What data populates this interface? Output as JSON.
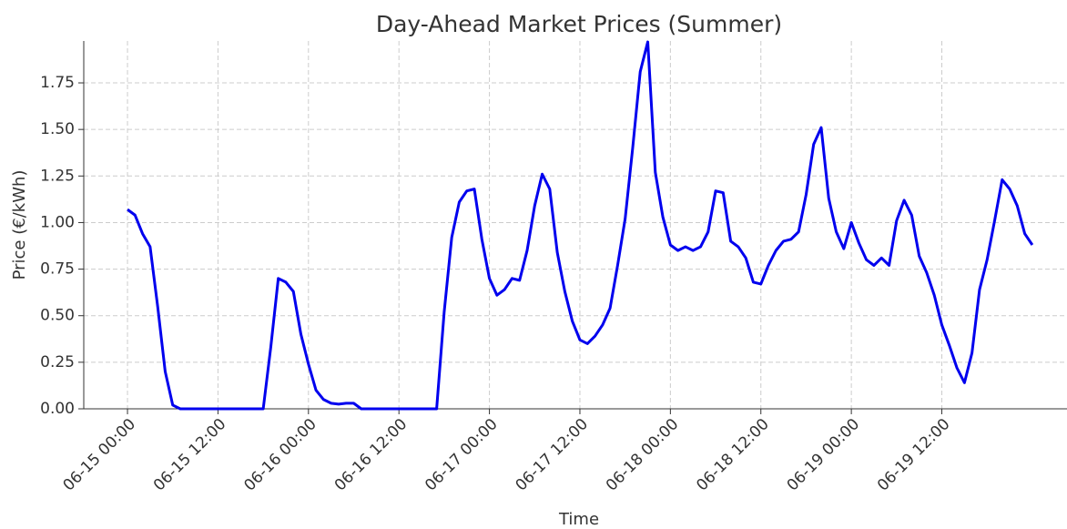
{
  "chart_data": {
    "type": "line",
    "title": "Day-Ahead Market Prices (Summer)",
    "x_label": "Time",
    "y_label": "Price (€/kWh)",
    "x": [
      "06-15 00:00",
      "06-15 01:00",
      "06-15 02:00",
      "06-15 03:00",
      "06-15 04:00",
      "06-15 05:00",
      "06-15 06:00",
      "06-15 07:00",
      "06-15 08:00",
      "06-15 09:00",
      "06-15 10:00",
      "06-15 11:00",
      "06-15 12:00",
      "06-15 13:00",
      "06-15 14:00",
      "06-15 15:00",
      "06-15 16:00",
      "06-15 17:00",
      "06-15 18:00",
      "06-15 19:00",
      "06-15 20:00",
      "06-15 21:00",
      "06-15 22:00",
      "06-15 23:00",
      "06-16 00:00",
      "06-16 01:00",
      "06-16 02:00",
      "06-16 03:00",
      "06-16 04:00",
      "06-16 05:00",
      "06-16 06:00",
      "06-16 07:00",
      "06-16 08:00",
      "06-16 09:00",
      "06-16 10:00",
      "06-16 11:00",
      "06-16 12:00",
      "06-16 13:00",
      "06-16 14:00",
      "06-16 15:00",
      "06-16 16:00",
      "06-16 17:00",
      "06-16 18:00",
      "06-16 19:00",
      "06-16 20:00",
      "06-16 21:00",
      "06-16 22:00",
      "06-16 23:00",
      "06-17 00:00",
      "06-17 01:00",
      "06-17 02:00",
      "06-17 03:00",
      "06-17 04:00",
      "06-17 05:00",
      "06-17 06:00",
      "06-17 07:00",
      "06-17 08:00",
      "06-17 09:00",
      "06-17 10:00",
      "06-17 11:00",
      "06-17 12:00",
      "06-17 13:00",
      "06-17 14:00",
      "06-17 15:00",
      "06-17 16:00",
      "06-17 17:00",
      "06-17 18:00",
      "06-17 19:00",
      "06-17 20:00",
      "06-17 21:00",
      "06-17 22:00",
      "06-17 23:00",
      "06-18 00:00",
      "06-18 01:00",
      "06-18 02:00",
      "06-18 03:00",
      "06-18 04:00",
      "06-18 05:00",
      "06-18 06:00",
      "06-18 07:00",
      "06-18 08:00",
      "06-18 09:00",
      "06-18 10:00",
      "06-18 11:00",
      "06-18 12:00",
      "06-18 13:00",
      "06-18 14:00",
      "06-18 15:00",
      "06-18 16:00",
      "06-18 17:00",
      "06-18 18:00",
      "06-18 19:00",
      "06-18 20:00",
      "06-18 21:00",
      "06-18 22:00",
      "06-18 23:00",
      "06-19 00:00",
      "06-19 01:00",
      "06-19 02:00",
      "06-19 03:00",
      "06-19 04:00",
      "06-19 05:00",
      "06-19 06:00",
      "06-19 07:00",
      "06-19 08:00",
      "06-19 09:00",
      "06-19 10:00",
      "06-19 11:00",
      "06-19 12:00",
      "06-19 13:00",
      "06-19 14:00",
      "06-19 15:00",
      "06-19 16:00",
      "06-19 17:00",
      "06-19 18:00",
      "06-19 19:00",
      "06-19 20:00",
      "06-19 21:00",
      "06-19 22:00",
      "06-19 23:00",
      "06-20 00:00"
    ],
    "values": [
      1.07,
      1.04,
      0.94,
      0.87,
      0.55,
      0.2,
      0.02,
      0,
      0,
      0,
      0,
      0,
      0,
      0,
      0,
      0,
      0,
      0,
      0,
      0.33,
      0.7,
      0.68,
      0.63,
      0.4,
      0.24,
      0.1,
      0.05,
      0.03,
      0.025,
      0.03,
      0.03,
      0,
      0,
      0,
      0,
      0,
      0,
      0,
      0,
      0,
      0,
      0,
      0.52,
      0.92,
      1.11,
      1.17,
      1.18,
      0.91,
      0.7,
      0.61,
      0.64,
      0.7,
      0.69,
      0.85,
      1.09,
      1.26,
      1.18,
      0.84,
      0.63,
      0.47,
      0.37,
      0.35,
      0.39,
      0.45,
      0.54,
      0.77,
      1.02,
      1.4,
      1.81,
      1.97,
      1.27,
      1.03,
      0.88,
      0.85,
      0.87,
      0.85,
      0.87,
      0.95,
      1.17,
      1.16,
      0.9,
      0.87,
      0.81,
      0.68,
      0.67,
      0.77,
      0.85,
      0.9,
      0.91,
      0.95,
      1.15,
      1.42,
      1.51,
      1.13,
      0.95,
      0.86,
      1.0,
      0.89,
      0.8,
      0.77,
      0.81,
      0.77,
      1.01,
      1.12,
      1.04,
      0.82,
      0.73,
      0.61,
      0.45,
      0.34,
      0.22,
      0.14,
      0.3,
      0.64,
      0.8,
      1.01,
      1.23,
      1.18,
      1.09,
      0.94,
      0.88
    ],
    "color": "#0000ee",
    "xlim": [
      "06-14 18:12",
      "06-20 04:36"
    ],
    "xticks": [
      "06-15 00:00",
      "06-15 12:00",
      "06-16 00:00",
      "06-16 12:00",
      "06-17 00:00",
      "06-17 12:00",
      "06-18 00:00",
      "06-18 12:00",
      "06-19 00:00",
      "06-19 12:00"
    ],
    "ylim": [
      0,
      1.975
    ],
    "yticks": [
      {
        "value": 0,
        "label": "0.00"
      },
      {
        "value": 0.25,
        "label": "0.25"
      },
      {
        "value": 0.5,
        "label": "0.50"
      },
      {
        "value": 0.75,
        "label": "0.75"
      },
      {
        "value": 1,
        "label": "1.00"
      },
      {
        "value": 1.25,
        "label": "1.25"
      },
      {
        "value": 1.5,
        "label": "1.50"
      },
      {
        "value": 1.75,
        "label": "1.75"
      }
    ],
    "grid": true
  }
}
